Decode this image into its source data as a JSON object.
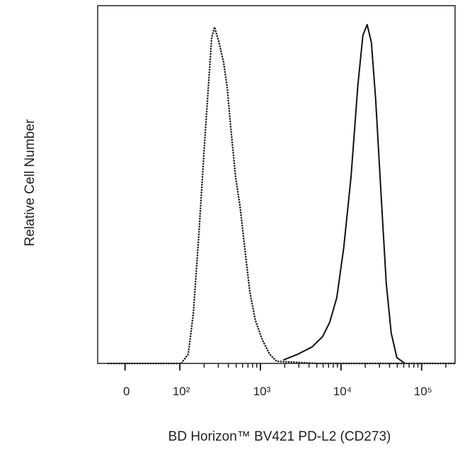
{
  "chart_data": {
    "type": "line",
    "xlabel": "BD Horizon™ BV421 PD-L2 (CD273)",
    "ylabel": "Relative Cell Number",
    "xscale": "biexponential",
    "xlim": [
      -50,
      260000
    ],
    "ylim": [
      0,
      100
    ],
    "xticks": [
      0,
      {
        "value": 100,
        "label": "10²"
      },
      {
        "value": 1000,
        "label": "10³"
      },
      {
        "value": 10000,
        "label": "10⁴"
      },
      {
        "value": 100000,
        "label": "10⁵"
      }
    ],
    "xminorticks": [
      200,
      300,
      400,
      500,
      600,
      700,
      800,
      900,
      2000,
      3000,
      4000,
      5000,
      6000,
      7000,
      8000,
      9000,
      20000,
      30000,
      40000,
      50000,
      60000,
      70000,
      80000,
      90000,
      200000
    ],
    "series": [
      {
        "color": "#222222",
        "style": "dotted",
        "x": [
          -30,
          0,
          50,
          104,
          127,
          147,
          172,
          203,
          224,
          248,
          269,
          304,
          350,
          387,
          428,
          493,
          557,
          641,
          738,
          866,
          1060,
          1300,
          1590,
          5000,
          50000,
          250000
        ],
        "values": [
          0,
          0,
          0,
          0,
          2.6,
          14,
          36,
          62,
          76,
          91,
          94,
          90,
          84,
          77,
          66,
          52,
          44,
          32,
          20,
          12,
          6.5,
          2.6,
          0.6,
          0,
          0,
          0
        ]
      },
      {
        "color": "#111111",
        "style": "solid",
        "x": [
          1950,
          2920,
          4370,
          5910,
          7240,
          8860,
          10800,
          13300,
          16200,
          18700,
          21100,
          23800,
          26900,
          31600,
          36400,
          42000,
          49300,
          60400
        ],
        "values": [
          1.0,
          2.6,
          4.6,
          7.5,
          11.5,
          18.4,
          32.3,
          52.1,
          77.8,
          91.7,
          94.7,
          89.7,
          73.9,
          46.1,
          22.4,
          8.5,
          1.6,
          0.2
        ]
      }
    ]
  }
}
